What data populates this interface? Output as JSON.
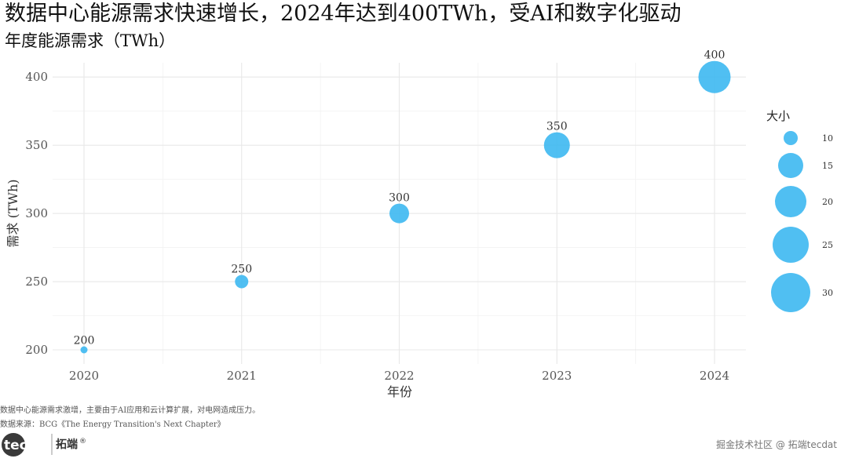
{
  "chart_data": {
    "type": "scatter",
    "title": "数据中心能源需求快速增长，2024年达到400TWh，受AI和数字化驱动",
    "subtitle": "年度能源需求（TWh）",
    "xlabel": "年份",
    "ylabel": "需求 (TWh)",
    "x": [
      2020,
      2021,
      2022,
      2023,
      2024
    ],
    "y": [
      200,
      250,
      300,
      350,
      400
    ],
    "size": [
      10,
      15,
      20,
      25,
      30
    ],
    "point_labels": [
      "200",
      "250",
      "300",
      "350",
      "400"
    ],
    "x_ticks": [
      "2020",
      "2021",
      "2022",
      "2023",
      "2024"
    ],
    "y_ticks": [
      "200",
      "250",
      "300",
      "350",
      "400"
    ],
    "y_tick_values": [
      200,
      250,
      300,
      350,
      400
    ],
    "xlim": [
      2019.8,
      2024.2
    ],
    "ylim": [
      191,
      409
    ],
    "grid": true,
    "color": "#38B6F0",
    "legend": {
      "title": "大小",
      "placement": "right",
      "values": [
        10,
        15,
        20,
        25,
        30
      ],
      "labels": [
        "10",
        "15",
        "20",
        "25",
        "30"
      ]
    },
    "caption_lines": [
      "数据中心能源需求激增，主要由于AI应用和云计算扩展，对电网造成压力。",
      "数据来源：BCG《The Energy Transition's Next Chapter》"
    ]
  },
  "branding": {
    "logo_left": "tecdat",
    "logo_right": "拓端",
    "logo_mark": "®",
    "watermark": "掘金技术社区 @ 拓端tecdat"
  }
}
